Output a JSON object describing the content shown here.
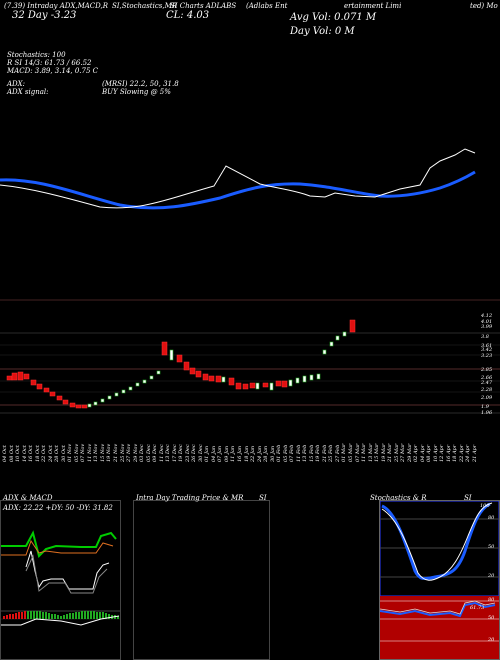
{
  "header": {
    "line1_left": "(7.39) Intraday ADX,MACD,R",
    "line1_mid": "SI,Stochastics,MR",
    "line1_mid2": "SI Charts ADLABS",
    "line1_right_a": "(Adlabs Ent",
    "line1_right_b": "ertainment Limi",
    "line1_right_c": "ted) Mo",
    "line2_left": "32 Day -3.23",
    "line2_mid": "CL: 4.03",
    "avg_vol": "Avg Vol: 0.071 M",
    "day_vol": "Day Vol: 0   M"
  },
  "indicators": {
    "stochastics": "Stochastics: 100",
    "r_line": "R                    SI 14/3: 61.73 / 66.52",
    "macd_line": "MACD: 3.89, 3.14, 0.75 C",
    "adx": "ADX:",
    "adx_mrsi": "(MRSI) 22.2,  50,  31.8",
    "adx_signal": "ADX  signal:",
    "buy_signal": "BUY Slowing @ 5%"
  },
  "price_ticks": [
    "4.12",
    "4.01",
    "3.99",
    "3.8",
    "3.61",
    "3.42",
    "3.23",
    "2.85",
    "2.66",
    "2.47",
    "2.28",
    "2.09",
    "1.9",
    "1.96"
  ],
  "date_labels": [
    "04 Oct",
    "08 Oct",
    "10 Oct",
    "14 Oct",
    "16 Oct",
    "18 Oct",
    "22 Oct",
    "24 Oct",
    "28 Oct",
    "30 Oct",
    "01 Nov",
    "05 Nov",
    "07 Nov",
    "11 Nov",
    "13 Nov",
    "15 Nov",
    "19 Nov",
    "21 Nov",
    "25 Nov",
    "27 Nov",
    "29 Nov",
    "03 Dec",
    "05 Dec",
    "09 Dec",
    "11 Dec",
    "13 Dec",
    "17 Dec",
    "19 Dec",
    "23 Dec",
    "26 Dec",
    "30 Dec",
    "01 Jan",
    "04 Jan",
    "07 Jan",
    "09 Jan",
    "11 Jan",
    "16 Jan",
    "18 Jan",
    "22 Jan",
    "24 Jan",
    "28 Jan",
    "30 Jan",
    "01 Feb",
    "05 Feb",
    "07 Feb",
    "11 Feb",
    "13 Feb",
    "15 Feb",
    "19 Feb",
    "21 Feb",
    "25 Feb",
    "27 Feb",
    "01 Mar",
    "05 Mar",
    "07 Mar",
    "11 Mar",
    "13 Mar",
    "15 Mar",
    "19 Mar",
    "21 Mar",
    "25 Mar",
    "27 Mar",
    "29 Mar",
    "02 Apr",
    "04 Apr",
    "08 Apr",
    "10 Apr",
    "12 Apr",
    "16 Apr",
    "18 Apr",
    "22 Apr",
    "24 Apr",
    "21 Apr"
  ],
  "panels": {
    "adx_title": "ADX  & MACD",
    "adx_values": "ADX: 22.22  +DY: 50  -DY: 31.82",
    "intraday_title": "Intra  Day Trading Price  & MR",
    "intraday_title2": "SI",
    "stoch_title": "Stochastics & R",
    "stoch_title2": "SI",
    "stoch_ticks": [
      "80",
      "50",
      "20"
    ],
    "rsi_ticks": [
      "80",
      "50",
      "20"
    ],
    "stoch_val": "100",
    "rsi_val": "61.73"
  },
  "colors": {
    "ma_blue": "#1a5cff",
    "price_white": "#ffffff",
    "up_green": "#22aa22",
    "down_red": "#e01010",
    "adx_green": "#00cc00",
    "rsi_red": "#b00000"
  }
}
